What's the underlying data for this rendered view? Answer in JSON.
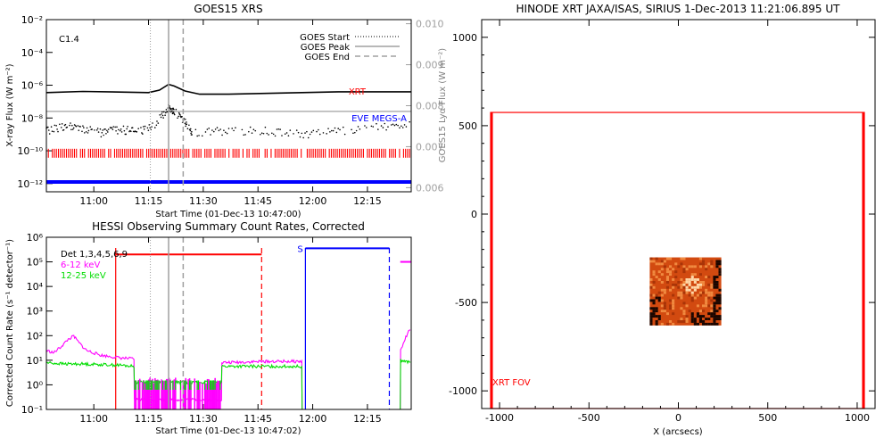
{
  "chart_data": [
    {
      "type": "line",
      "title": "GOES15 XRS",
      "xlabel": "Start Time (01-Dec-13 10:47:00)",
      "ylabel": "X-ray Flux (W m⁻²)",
      "y2label": "GOES15 Lyα Flux (W m⁻²)",
      "annotation": "C1.4",
      "x_ticks": [
        "11:00",
        "11:15",
        "11:30",
        "11:45",
        "12:00",
        "12:15"
      ],
      "y_ticks": [
        "10⁻²",
        "10⁻⁴",
        "10⁻⁶",
        "10⁻⁸",
        "10⁻¹⁰",
        "10⁻¹²"
      ],
      "y2_ticks": [
        "0.010",
        "0.009",
        "0.008",
        "0.007",
        "0.006"
      ],
      "ylim_exp": [
        -12.5,
        -2
      ],
      "y2lim": [
        0.0059,
        0.0101
      ],
      "xlim_min": [
        0,
        100
      ],
      "legend_placement": "top-right",
      "legend": [
        "GOES Start",
        "GOES Peak",
        "GOES End"
      ],
      "markers_min": {
        "start": 28.5,
        "peak": 33.5,
        "end": 37.5
      },
      "series_labels": {
        "xrt": "XRT",
        "eve": "EVE MEGS-A"
      },
      "colors": {
        "axis": "#000000",
        "xrt": "#ff0000",
        "eve": "#0000ff",
        "gray": "#a0a0a0"
      },
      "xrt_band_exp": -10.15,
      "eve_band_exp": -11.9,
      "series": [
        {
          "type": "line",
          "color": "#000000",
          "x_min": [
            0,
            10,
            20,
            28,
            31,
            33.5,
            35,
            38,
            42,
            50,
            60,
            70,
            80,
            90,
            100
          ],
          "y_exp": [
            -6.45,
            -6.38,
            -6.42,
            -6.45,
            -6.3,
            -5.95,
            -6.05,
            -6.35,
            -6.55,
            -6.55,
            -6.5,
            -6.45,
            -6.4,
            -6.4,
            -6.4
          ]
        },
        {
          "type": "line",
          "color": "#a0a0a0",
          "x_min": [
            0,
            100
          ],
          "y_exp": [
            -7.6,
            -7.6
          ]
        },
        {
          "type": "dotted",
          "color": "#000000",
          "x_min": [
            0,
            5,
            10,
            15,
            20,
            25,
            30,
            33.5,
            35,
            38,
            40,
            50,
            60,
            70,
            80,
            90,
            100
          ],
          "y_exp": [
            -8.8,
            -8.5,
            -8.7,
            -8.9,
            -8.7,
            -8.85,
            -8.4,
            -7.3,
            -7.6,
            -8.2,
            -8.9,
            -8.8,
            -8.8,
            -9.0,
            -8.8,
            -8.6,
            -8.3
          ]
        }
      ]
    },
    {
      "type": "line",
      "title": "HESSI Observing Summary Count Rates, Corrected",
      "xlabel": "Start Time (01-Dec-13 10:47:02)",
      "ylabel": "Corrected Count Rate (s⁻¹ detector⁻¹)",
      "x_ticks": [
        "11:00",
        "11:15",
        "11:30",
        "11:45",
        "12:00",
        "12:15"
      ],
      "y_ticks": [
        "10⁶",
        "10⁵",
        "10⁴",
        "10³",
        "10²",
        "10¹",
        "10⁰",
        "10⁻¹"
      ],
      "ylim_exp": [
        -1,
        6
      ],
      "xlim_min": [
        0,
        100
      ],
      "legend": [
        "Det 1,3,4,5,6,9",
        "6-12 keV",
        "12-25 keV"
      ],
      "legend_colors": [
        "#000000",
        "#ff00ff",
        "#00dd00"
      ],
      "markers_min": {
        "start": 28.5,
        "peak": 33.5,
        "end": 37.5
      },
      "night_bars": [
        {
          "x_min": [
            19,
            59
          ],
          "y_exp": 5.3,
          "color": "#ff0000",
          "label": ""
        },
        {
          "x_min": [
            71,
            94
          ],
          "y_exp": 5.55,
          "color": "#0000ff",
          "label": "S"
        },
        {
          "x_min": [
            97,
            100
          ],
          "y_exp": 5.0,
          "color": "#ff00ff",
          "label": ""
        }
      ],
      "series": [
        {
          "name": "6-12 keV",
          "color": "#ff00ff",
          "x_min": [
            0,
            2,
            4,
            6,
            7.5,
            9,
            11,
            13,
            15,
            20,
            24,
            24.1,
            33,
            33.1,
            36,
            36.1,
            43,
            43.1,
            48,
            48.1,
            60,
            60.1,
            70,
            70.1,
            97,
            97.1,
            99,
            100
          ],
          "y_exp": [
            1.4,
            1.3,
            1.55,
            1.85,
            1.98,
            1.7,
            1.4,
            1.3,
            1.2,
            1.1,
            1.05,
            -0.6,
            -0.6,
            -0.6,
            -0.6,
            -0.6,
            -0.6,
            -0.6,
            -0.6,
            0.9,
            0.95,
            0.95,
            0.95,
            -1.0,
            -1.0,
            1.4,
            2.1,
            2.25
          ]
        },
        {
          "name": "12-25 keV",
          "color": "#00dd00",
          "x_min": [
            0,
            5,
            10,
            20,
            24,
            24.1,
            36,
            36.1,
            48,
            48.1,
            70,
            70.1,
            97,
            97.1,
            100
          ],
          "y_exp": [
            0.9,
            0.85,
            0.85,
            0.8,
            0.75,
            0.1,
            0.1,
            0.1,
            0.1,
            0.75,
            0.75,
            -1.0,
            -1.0,
            1.0,
            0.9
          ]
        }
      ]
    },
    {
      "type": "image",
      "title": "HINODE XRT JAXA/ISAS, SIRIUS   1-Dec-2013 11:21:06.895 UT",
      "xlabel": "X (arcsecs)",
      "ylabel": "",
      "x_ticks": [
        -1000,
        -500,
        0,
        500,
        1000
      ],
      "y_ticks": [
        1000,
        500,
        0,
        -500,
        -1000
      ],
      "xlim": [
        -1100,
        1100
      ],
      "ylim": [
        -1100,
        1100
      ],
      "fov_label": "XRT FOV",
      "fov_box": {
        "x": [
          -1050,
          1040
        ],
        "y": [
          -1100,
          575
        ]
      },
      "image_box": {
        "x": [
          -160,
          240
        ],
        "y": [
          -630,
          -245
        ]
      },
      "colors": {
        "fov": "#ff0000",
        "image_dark": "#1a0600",
        "image_mid": "#d24a10",
        "image_bright": "#ffd8a8"
      }
    }
  ]
}
